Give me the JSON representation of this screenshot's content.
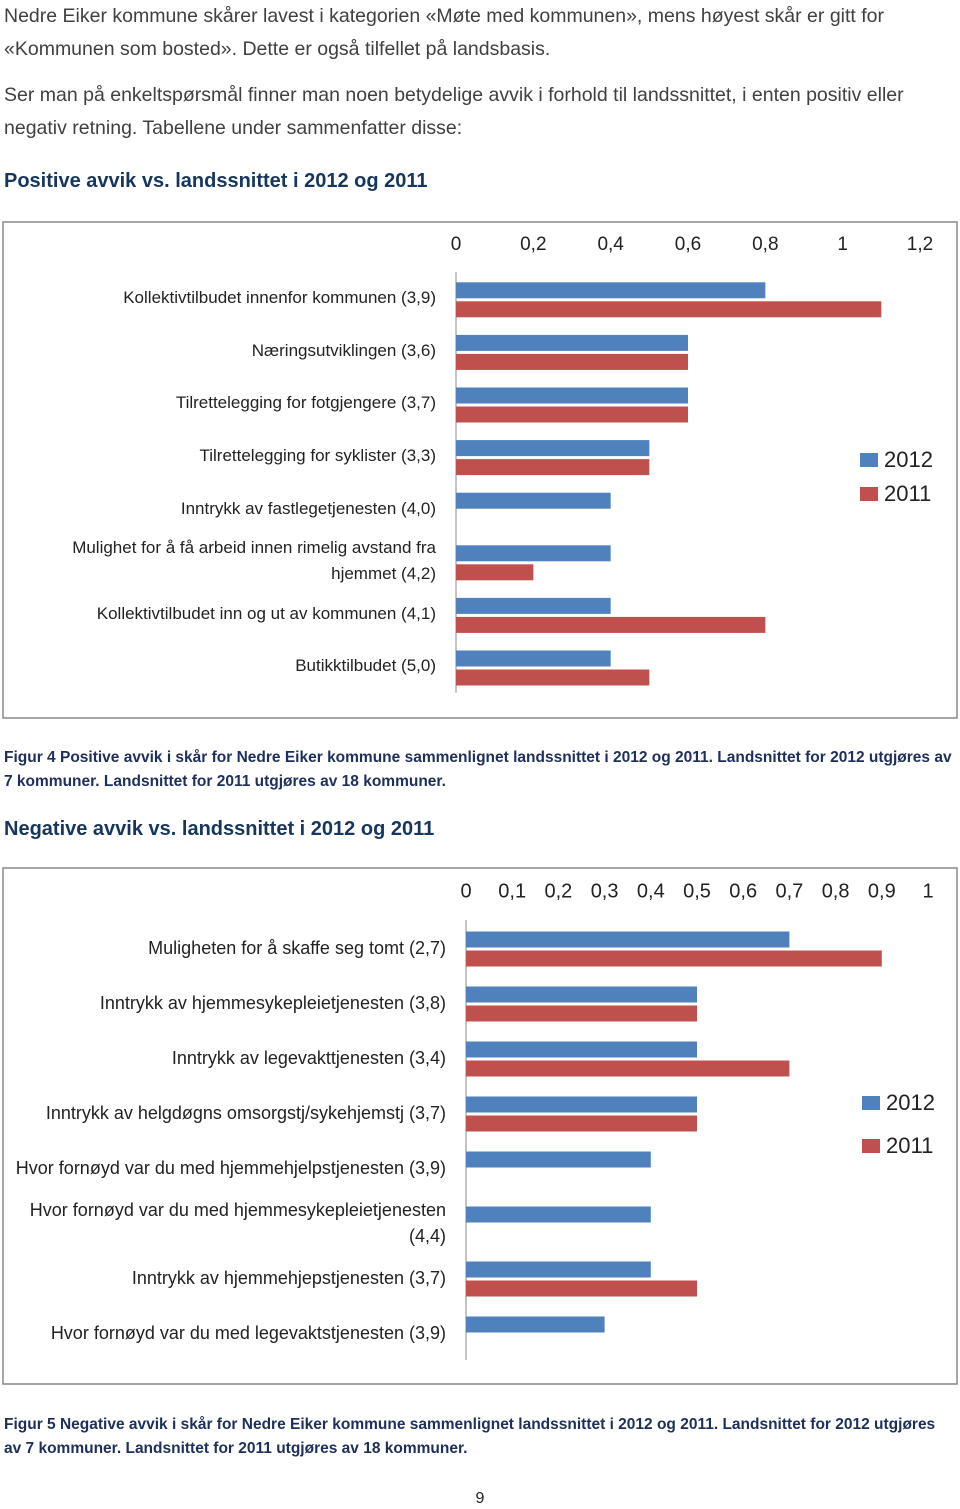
{
  "paragraphs": [
    "Nedre Eiker kommune skårer lavest i kategorien «Møte med kommunen», mens høyest skår er gitt for «Kommunen som bosted». Dette er også tilfellet på landsbasis.",
    "Ser man på enkeltspørsmål finner man noen betydelige avvik i forhold til landssnittet, i enten positiv eller negativ retning. Tabellene under sammenfatter disse:"
  ],
  "headings": [
    "Positive avvik vs. landssnittet i 2012 og 2011",
    "Negative avvik vs. landssnittet i 2012 og 2011"
  ],
  "chart_data": [
    {
      "type": "hbar",
      "categories": [
        "Kollektivtilbudet innenfor kommunen (3,9)",
        "Næringsutviklingen (3,6)",
        "Tilrettelegging for fotgjengere (3,7)",
        "Tilrettelegging for syklister (3,3)",
        "Inntrykk av fastlegetjenesten (4,0)",
        "Mulighet for å få arbeid innen rimelig avstand fra hjemmet (4,2)",
        "Kollektivtilbudet inn og ut av kommunen (4,1)",
        "Butikktilbudet (5,0)"
      ],
      "series": [
        {
          "name": "2012",
          "color": "#4f81bd",
          "values": [
            0.8,
            0.6,
            0.6,
            0.5,
            0.4,
            0.4,
            0.4,
            0.4
          ]
        },
        {
          "name": "2011",
          "color": "#c0504d",
          "values": [
            1.1,
            0.6,
            0.6,
            0.5,
            null,
            0.2,
            0.8,
            0.5
          ]
        }
      ],
      "xlim": [
        0,
        1.2
      ],
      "xticks": [
        0,
        {
          "value": 0.2,
          "label": "0,2"
        },
        {
          "value": 0.4,
          "label": "0,4"
        },
        {
          "value": 0.6,
          "label": "0,6"
        },
        {
          "value": 0.8,
          "label": "0,8"
        },
        1,
        {
          "value": 1.2,
          "label": "1,2"
        }
      ],
      "legend": "right"
    },
    {
      "type": "hbar",
      "categories": [
        "Muligheten for å skaffe seg tomt (2,7)",
        "Inntrykk av hjemmesykepleietjenesten (3,8)",
        "Inntrykk av legevakttjenesten (3,4)",
        "Inntrykk av helgdøgns omsorgstj/sykehjemstj (3,7)",
        "Hvor fornøyd var du med hjemmehjelpstjenesten (3,9)",
        "Hvor fornøyd var du med hjemmesykepleietjenesten (4,4)",
        "Inntrykk av hjemmehjepstjenesten (3,7)",
        "Hvor fornøyd var du med legevaktstjenesten (3,9)"
      ],
      "series": [
        {
          "name": "2012",
          "color": "#4f81bd",
          "values": [
            0.7,
            0.5,
            0.5,
            0.5,
            0.4,
            0.4,
            0.4,
            0.3
          ]
        },
        {
          "name": "2011",
          "color": "#c0504d",
          "values": [
            0.9,
            0.5,
            0.7,
            0.5,
            null,
            null,
            0.5,
            null
          ]
        }
      ],
      "xlim": [
        0,
        1
      ],
      "xticks": [
        0,
        {
          "value": 0.1,
          "label": "0,1"
        },
        {
          "value": 0.2,
          "label": "0,2"
        },
        {
          "value": 0.3,
          "label": "0,3"
        },
        {
          "value": 0.4,
          "label": "0,4"
        },
        {
          "value": 0.5,
          "label": "0,5"
        },
        {
          "value": 0.6,
          "label": "0,6"
        },
        {
          "value": 0.7,
          "label": "0,7"
        },
        {
          "value": 0.8,
          "label": "0,8"
        },
        {
          "value": 0.9,
          "label": "0,9"
        },
        1
      ],
      "legend": "right"
    }
  ],
  "captions": [
    "Figur 4 Positive avvik i skår for Nedre Eiker kommune sammenlignet landssnittet i 2012 og 2011. Landsnittet for 2012 utgjøres av 7 kommuner. Landsnittet for 2011 utgjøres av 18 kommuner.",
    "Figur 5 Negative avvik i skår for Nedre Eiker kommune sammenlignet landssnittet i 2012 og 2011. Landsnittet for 2012 utgjøres av 7 kommuner. Landsnittet for 2011 utgjøres av 18 kommuner."
  ],
  "page_number": "9"
}
